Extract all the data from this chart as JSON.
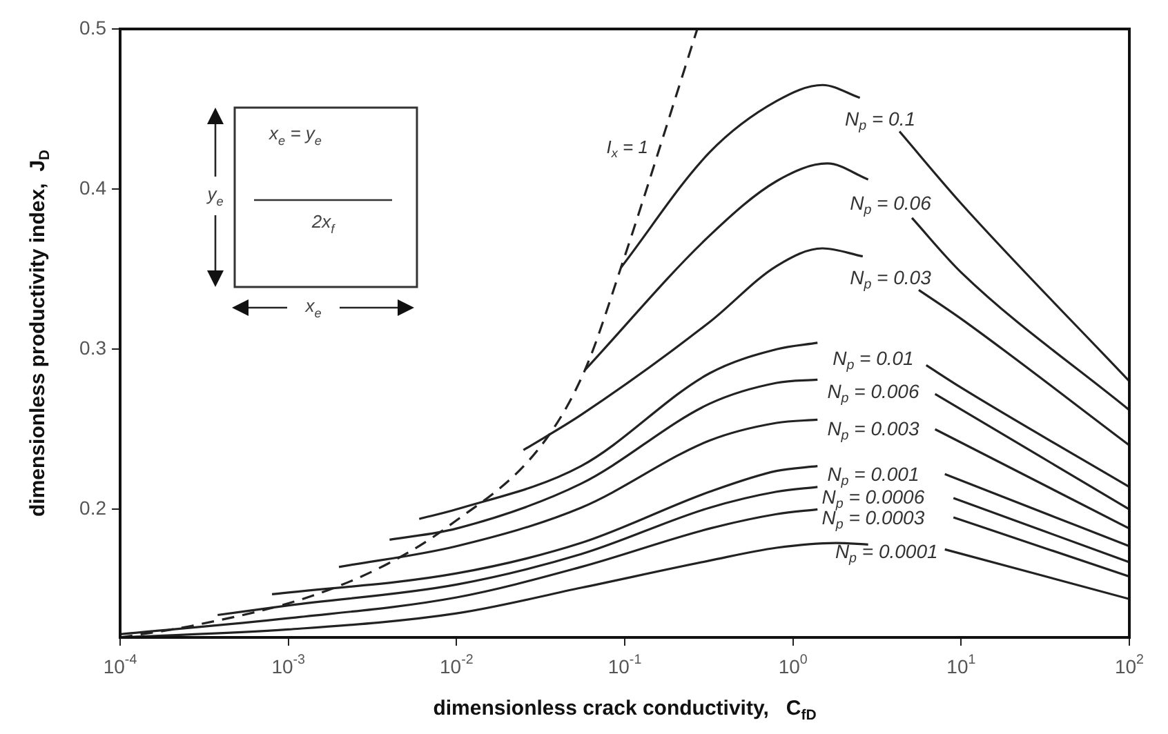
{
  "chart_data": {
    "type": "line",
    "xlabel": "dimensionless crack conductivity,   C$_{fD}$",
    "ylabel": "dimensionless productivity index,  J$_{D}$",
    "log": "x",
    "xlim": [
      0.0001,
      100
    ],
    "ylim": [
      0.12,
      0.5
    ],
    "xticks": [
      {
        "value": 0.0001,
        "label": "10$^{-4}$"
      },
      {
        "value": 0.001,
        "label": "10$^{-3}$"
      },
      {
        "value": 0.01,
        "label": "10$^{-2}$"
      },
      {
        "value": 0.1,
        "label": "10$^{-1}$"
      },
      {
        "value": 1,
        "label": "10$^{0}$"
      },
      {
        "value": 10,
        "label": "10$^{1}$"
      },
      {
        "value": 100,
        "label": "10$^{2}$"
      }
    ],
    "yticks": [
      0.2,
      0.3,
      0.4,
      0.5
    ],
    "grid": false,
    "legend": false,
    "marker": "none",
    "line_style": "solid",
    "annotations": [
      "x$_{e}$ = y$_{e}$",
      "y$_{e}$",
      "2x$_{f}$",
      "x$_{e}$"
    ],
    "series": [
      {
        "name": "I$_{x}$ = 1",
        "color": "#222222",
        "line_style": "dashed",
        "x": [
          0.0001,
          0.00026,
          0.0013,
          0.0039,
          0.0091,
          0.032,
          0.058,
          0.095,
          0.27
        ],
        "values": [
          0.12,
          0.127,
          0.145,
          0.166,
          0.19,
          0.24,
          0.287,
          0.351,
          0.5
        ]
      },
      {
        "name": "N$_{p}$ = 0.1",
        "color": "#222222",
        "x": [
          0.095,
          0.32,
          0.8,
          1.5,
          2.5,
          3.3,
          4.3,
          10,
          100
        ],
        "values": [
          0.351,
          0.423,
          0.455,
          0.465,
          0.457,
          null,
          0.436,
          0.391,
          0.28
        ]
      },
      {
        "name": "N$_{p}$ = 0.06",
        "color": "#222222",
        "x": [
          0.058,
          0.32,
          0.8,
          1.6,
          2.8,
          3.8,
          5.1,
          10,
          100
        ],
        "values": [
          0.287,
          0.371,
          0.405,
          0.416,
          0.406,
          null,
          0.382,
          0.348,
          0.262
        ]
      },
      {
        "name": "N$_{p}$ = 0.03",
        "color": "#222222",
        "x": [
          0.025,
          0.055,
          0.32,
          0.8,
          1.5,
          2.6,
          3.8,
          5.6,
          10,
          100
        ],
        "values": [
          0.237,
          0.259,
          0.317,
          0.352,
          0.363,
          0.358,
          null,
          0.337,
          0.319,
          0.24
        ]
      },
      {
        "name": "N$_{p}$ = 0.01",
        "color": "#222222",
        "x": [
          0.006,
          0.01,
          0.055,
          0.32,
          0.8,
          1.4,
          3,
          6.2,
          10,
          100
        ],
        "values": [
          0.194,
          0.2,
          0.227,
          0.285,
          0.3,
          0.304,
          null,
          0.29,
          0.276,
          0.214
        ]
      },
      {
        "name": "N$_{p}$ = 0.006",
        "color": "#222222",
        "x": [
          0.004,
          0.01,
          0.055,
          0.32,
          0.8,
          1.4,
          3,
          7,
          100
        ],
        "values": [
          0.181,
          0.188,
          0.216,
          0.266,
          0.279,
          0.281,
          null,
          0.272,
          0.2
        ]
      },
      {
        "name": "N$_{p}$ = 0.003",
        "color": "#222222",
        "x": [
          0.002,
          0.01,
          0.055,
          0.32,
          0.8,
          1.4,
          3,
          7,
          100
        ],
        "values": [
          0.164,
          0.177,
          0.201,
          0.243,
          0.254,
          0.256,
          null,
          0.25,
          0.188
        ]
      },
      {
        "name": "N$_{p}$ = 0.001",
        "color": "#222222",
        "x": [
          0.0008,
          0.01,
          0.055,
          0.32,
          0.8,
          1.4,
          3,
          8,
          100
        ],
        "values": [
          0.147,
          0.16,
          0.179,
          0.211,
          0.224,
          0.227,
          null,
          0.222,
          0.177
        ]
      },
      {
        "name": "N$_{p}$ = 0.0006",
        "color": "#222222",
        "x": [
          0.00038,
          0.001,
          0.01,
          0.055,
          0.32,
          0.8,
          1.4,
          3,
          9,
          100
        ],
        "values": [
          0.134,
          0.14,
          0.153,
          0.172,
          0.201,
          0.211,
          0.214,
          null,
          0.207,
          0.167
        ]
      },
      {
        "name": "N$_{p}$ = 0.0003",
        "color": "#222222",
        "x": [
          0.0001,
          0.001,
          0.01,
          0.055,
          0.32,
          0.8,
          1.4,
          3,
          9,
          100
        ],
        "values": [
          0.122,
          0.132,
          0.145,
          0.164,
          0.188,
          0.197,
          0.2,
          null,
          0.195,
          0.158
        ]
      },
      {
        "name": "N$_{p}$ = 0.0001",
        "color": "#222222",
        "x": [
          0.0001,
          0.001,
          0.01,
          0.055,
          0.32,
          0.8,
          1.8,
          2.8,
          3.6,
          8,
          100
        ],
        "values": [
          0.12,
          0.125,
          0.135,
          0.151,
          0.168,
          0.176,
          0.179,
          0.178,
          null,
          0.175,
          0.144
        ]
      }
    ]
  }
}
